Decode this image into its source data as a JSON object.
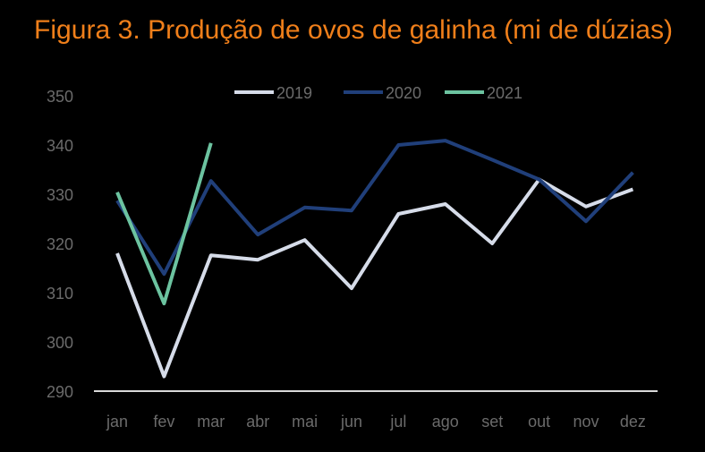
{
  "chart_data": {
    "type": "line",
    "title": "Figura 3. Produção de ovos de galinha (mi de dúzias)",
    "xlabel": "",
    "ylabel": "",
    "categories": [
      "jan",
      "fev",
      "mar",
      "abr",
      "mai",
      "jun",
      "jul",
      "ago",
      "set",
      "out",
      "nov",
      "dez"
    ],
    "ylim": [
      290,
      350
    ],
    "yticks": [
      350,
      340,
      330,
      320,
      310,
      300,
      290
    ],
    "grid": false,
    "legend_position": "top",
    "series": [
      {
        "name": "2019",
        "color": "#D6DCE9",
        "values": [
          318,
          293,
          317.6,
          316.7,
          320.7,
          310.9,
          326,
          328,
          320,
          333,
          327.5,
          331
        ]
      },
      {
        "name": "2020",
        "color": "#203F7A",
        "values": [
          328.7,
          313.8,
          332.7,
          321.8,
          327.3,
          326.7,
          340,
          340.9,
          337,
          333,
          324.5,
          334.4
        ]
      },
      {
        "name": "2021",
        "color": "#6CC3A0",
        "values": [
          330.4,
          307.8,
          340.4
        ]
      }
    ]
  },
  "colors": {
    "background": "#000000",
    "title": "#F07F1A",
    "tick_text": "#6b6b6b",
    "axis_line": "#D9D9D9"
  }
}
